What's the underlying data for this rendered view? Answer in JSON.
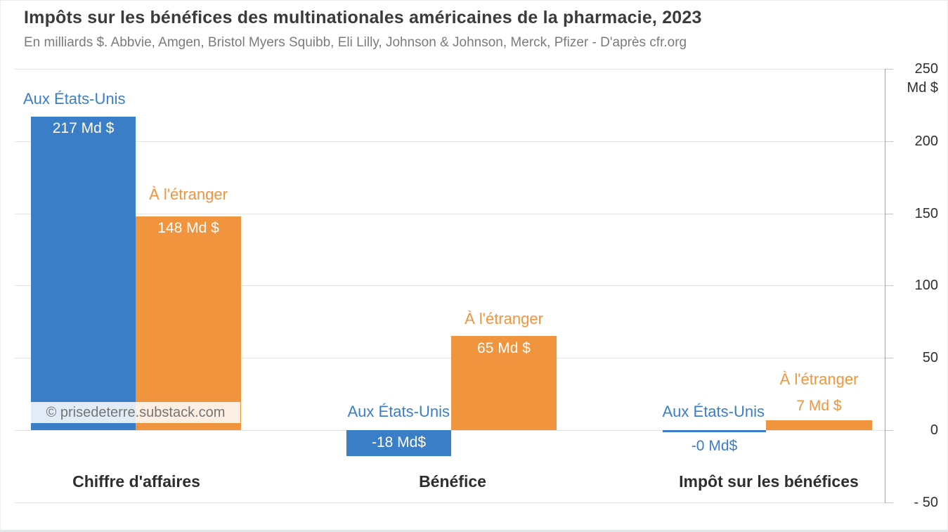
{
  "header": {
    "title": "Impôts sur les bénéfices des multinationales américaines de la pharmacie, 2023",
    "subtitle": "En milliards $. Abbvie, Amgen, Bristol Myers Squibb, Eli Lilly, Johnson & Johnson, Merck, Pfizer - D'après cfr.org"
  },
  "watermark": {
    "text": "© prisedeterre.substack.com"
  },
  "axis": {
    "unit_label": "Md $",
    "tick_labels": [
      "250",
      "200",
      "150",
      "100",
      "50",
      "0",
      "- 50"
    ],
    "tick_values": [
      250,
      200,
      150,
      100,
      50,
      0,
      -50
    ]
  },
  "colors": {
    "us_blue": "#3a7ec8",
    "foreign_orange": "#f0943d",
    "grid": "#e3e3e3",
    "axis_line": "#a3a3a3"
  },
  "chart_data": {
    "type": "bar",
    "title": "Impôts sur les bénéfices des multinationales américaines de la pharmacie, 2023",
    "subtitle": "En milliards $. Abbvie, Amgen, Bristol Myers Squibb, Eli Lilly, Johnson & Johnson, Merck, Pfizer - D'après cfr.org",
    "categories": [
      "Chiffre d'affaires",
      "Bénéfice",
      "Impôt sur les bénéfices"
    ],
    "series": [
      {
        "name": "Aux États-Unis",
        "color": "#3a7ec8",
        "values": [
          217,
          -18,
          -0.4
        ],
        "value_labels": [
          "217 Md $",
          "-18 Md$",
          "-0 Md$"
        ]
      },
      {
        "name": "À l'étranger",
        "color": "#f0943d",
        "values": [
          148,
          65,
          7
        ],
        "value_labels": [
          "148 Md $",
          "65 Md $",
          "7 Md $"
        ]
      }
    ],
    "xlabel": "",
    "ylabel": "Md $",
    "ylim": [
      -50,
      250
    ],
    "grid": true,
    "legend_position": "inline-labels-above-bars",
    "source": "D'après cfr.org"
  }
}
